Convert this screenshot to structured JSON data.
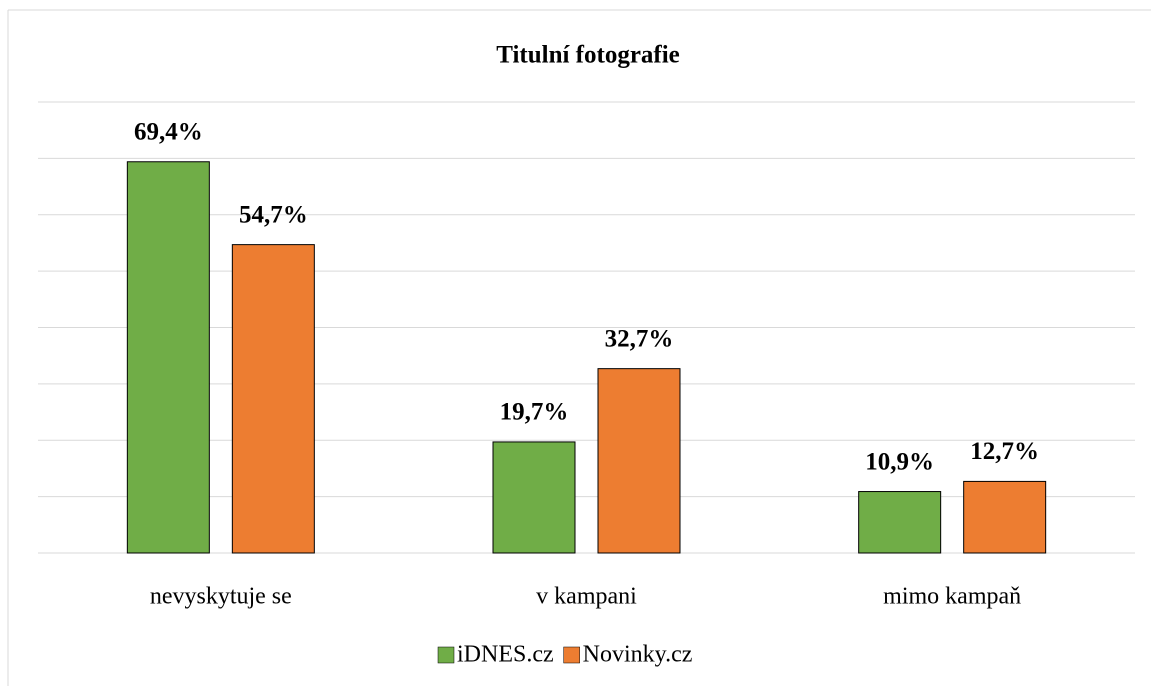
{
  "chart_data": {
    "type": "bar",
    "title": "Titulní fotografie",
    "categories": [
      "nevyskytuje se",
      "v kampani",
      "mimo kampaň"
    ],
    "series": [
      {
        "name": "iDNES.cz",
        "color": "#70ad47",
        "values": [
          69.4,
          19.7,
          10.9
        ],
        "value_labels": [
          "69,4%",
          "19,7%",
          "10,9%"
        ]
      },
      {
        "name": "Novinky.cz",
        "color": "#ed7d31",
        "values": [
          54.7,
          32.7,
          12.7
        ],
        "value_labels": [
          "54,7%",
          "32,7%",
          "12,7%"
        ]
      }
    ],
    "ylim": [
      0,
      80
    ],
    "yticks": [
      0,
      10,
      20,
      30,
      40,
      50,
      60,
      70,
      80
    ],
    "grid": true,
    "legend": "bottom"
  }
}
